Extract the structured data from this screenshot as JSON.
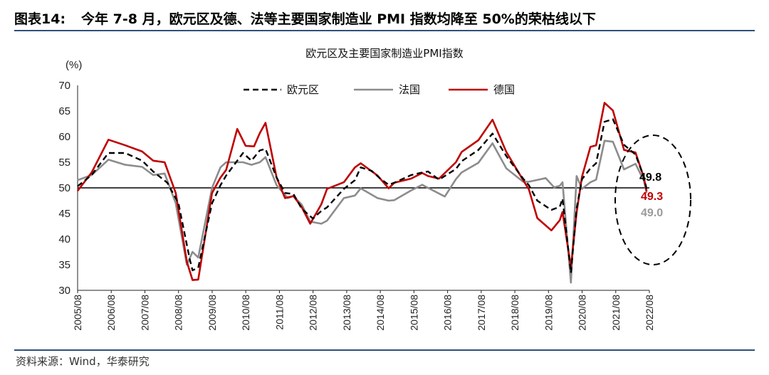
{
  "header": {
    "figure_number": "图表14:",
    "title": "今年 7-8 月，欧元区及德、法等主要国家制造业 PMI 指数均降至 50%的荣枯线以下"
  },
  "footer": {
    "source": "资料来源：Wind，华泰研究"
  },
  "colors": {
    "eurozone": "#000000",
    "france": "#8c8c8c",
    "germany": "#c00000",
    "rule": "#2e4f7a"
  },
  "chart_data": {
    "type": "line",
    "title": "欧元区及主要国家制造业PMI指数",
    "ylabel": "(%)",
    "xlabel": "",
    "ylim": [
      30,
      70
    ],
    "yticks": [
      30,
      35,
      40,
      45,
      50,
      55,
      60,
      65,
      70
    ],
    "reference_line": 50,
    "x_range": [
      2005.583,
      2022.583
    ],
    "x_tick_labels": [
      "2005/08",
      "2006/08",
      "2007/08",
      "2008/08",
      "2009/08",
      "2010/08",
      "2011/08",
      "2012/08",
      "2013/08",
      "2014/08",
      "2015/08",
      "2016/08",
      "2017/08",
      "2018/08",
      "2019/08",
      "2020/08",
      "2021/08",
      "2022/08"
    ],
    "legend_position": "top",
    "series": [
      {
        "name": "欧元区",
        "key": "eurozone",
        "style": "dashed",
        "points": [
          [
            2005.58,
            50.3
          ],
          [
            2006.0,
            52.5
          ],
          [
            2006.5,
            56.8
          ],
          [
            2007.0,
            56.8
          ],
          [
            2007.5,
            55.3
          ],
          [
            2007.83,
            53.2
          ],
          [
            2008.25,
            51.0
          ],
          [
            2008.58,
            47.0
          ],
          [
            2008.92,
            36.0
          ],
          [
            2009.0,
            33.9
          ],
          [
            2009.17,
            34.4
          ],
          [
            2009.58,
            47.0
          ],
          [
            2009.83,
            50.5
          ],
          [
            2010.0,
            52.4
          ],
          [
            2010.5,
            56.8
          ],
          [
            2010.75,
            55.3
          ],
          [
            2011.0,
            57.3
          ],
          [
            2011.17,
            57.6
          ],
          [
            2011.5,
            52.0
          ],
          [
            2011.75,
            49.0
          ],
          [
            2012.0,
            48.8
          ],
          [
            2012.25,
            45.9
          ],
          [
            2012.58,
            44.0
          ],
          [
            2012.83,
            45.5
          ],
          [
            2013.0,
            46.2
          ],
          [
            2013.5,
            49.8
          ],
          [
            2013.83,
            51.5
          ],
          [
            2014.0,
            54.0
          ],
          [
            2014.33,
            53.3
          ],
          [
            2014.58,
            51.8
          ],
          [
            2014.83,
            50.6
          ],
          [
            2015.0,
            51.0
          ],
          [
            2015.5,
            52.5
          ],
          [
            2015.83,
            53.0
          ],
          [
            2016.0,
            53.2
          ],
          [
            2016.33,
            51.6
          ],
          [
            2016.83,
            53.7
          ],
          [
            2017.0,
            55.2
          ],
          [
            2017.5,
            57.4
          ],
          [
            2017.92,
            60.6
          ],
          [
            2018.33,
            56.2
          ],
          [
            2018.83,
            51.8
          ],
          [
            2019.0,
            50.5
          ],
          [
            2019.25,
            47.5
          ],
          [
            2019.67,
            45.7
          ],
          [
            2019.92,
            46.3
          ],
          [
            2020.0,
            47.9
          ],
          [
            2020.25,
            33.4
          ],
          [
            2020.42,
            46.0
          ],
          [
            2020.58,
            51.7
          ],
          [
            2020.83,
            53.8
          ],
          [
            2021.0,
            54.8
          ],
          [
            2021.25,
            62.9
          ],
          [
            2021.5,
            63.4
          ],
          [
            2021.83,
            58.4
          ],
          [
            2022.17,
            56.5
          ],
          [
            2022.42,
            52.1
          ],
          [
            2022.5,
            49.8
          ]
        ]
      },
      {
        "name": "法国",
        "key": "france",
        "style": "solid",
        "points": [
          [
            2005.58,
            51.5
          ],
          [
            2006.0,
            52.5
          ],
          [
            2006.5,
            55.5
          ],
          [
            2007.0,
            54.5
          ],
          [
            2007.5,
            54.1
          ],
          [
            2007.83,
            52.5
          ],
          [
            2008.17,
            52.8
          ],
          [
            2008.5,
            47.0
          ],
          [
            2008.83,
            35.0
          ],
          [
            2009.0,
            37.5
          ],
          [
            2009.17,
            36.4
          ],
          [
            2009.58,
            50.0
          ],
          [
            2009.83,
            54.0
          ],
          [
            2010.0,
            55.0
          ],
          [
            2010.5,
            55.0
          ],
          [
            2010.75,
            54.5
          ],
          [
            2011.0,
            55.0
          ],
          [
            2011.17,
            56.0
          ],
          [
            2011.5,
            50.5
          ],
          [
            2011.83,
            48.0
          ],
          [
            2012.0,
            48.4
          ],
          [
            2012.25,
            46.7
          ],
          [
            2012.5,
            43.4
          ],
          [
            2012.83,
            43.0
          ],
          [
            2013.0,
            43.6
          ],
          [
            2013.5,
            48.0
          ],
          [
            2013.83,
            48.5
          ],
          [
            2014.0,
            49.9
          ],
          [
            2014.5,
            48.0
          ],
          [
            2014.83,
            47.5
          ],
          [
            2015.0,
            47.6
          ],
          [
            2015.5,
            49.5
          ],
          [
            2015.83,
            50.6
          ],
          [
            2016.0,
            50.0
          ],
          [
            2016.5,
            48.3
          ],
          [
            2016.83,
            51.7
          ],
          [
            2017.0,
            53.0
          ],
          [
            2017.5,
            54.9
          ],
          [
            2017.92,
            58.7
          ],
          [
            2018.33,
            53.8
          ],
          [
            2018.83,
            51.2
          ],
          [
            2019.0,
            51.2
          ],
          [
            2019.5,
            51.9
          ],
          [
            2019.75,
            50.1
          ],
          [
            2019.92,
            50.4
          ],
          [
            2020.0,
            51.1
          ],
          [
            2020.25,
            31.5
          ],
          [
            2020.42,
            52.3
          ],
          [
            2020.58,
            49.8
          ],
          [
            2020.83,
            51.1
          ],
          [
            2021.0,
            51.6
          ],
          [
            2021.25,
            59.2
          ],
          [
            2021.5,
            59.0
          ],
          [
            2021.83,
            53.6
          ],
          [
            2022.17,
            54.7
          ],
          [
            2022.42,
            51.4
          ],
          [
            2022.5,
            49.0
          ]
        ]
      },
      {
        "name": "德国",
        "key": "germany",
        "style": "solid",
        "points": [
          [
            2005.58,
            49.4
          ],
          [
            2006.0,
            53.0
          ],
          [
            2006.5,
            59.4
          ],
          [
            2007.0,
            58.3
          ],
          [
            2007.5,
            57.1
          ],
          [
            2007.83,
            55.3
          ],
          [
            2008.17,
            55.0
          ],
          [
            2008.5,
            49.0
          ],
          [
            2008.83,
            35.6
          ],
          [
            2009.0,
            32.0
          ],
          [
            2009.17,
            32.1
          ],
          [
            2009.58,
            49.0
          ],
          [
            2009.83,
            52.0
          ],
          [
            2010.0,
            53.5
          ],
          [
            2010.33,
            61.5
          ],
          [
            2010.58,
            58.2
          ],
          [
            2010.83,
            58.1
          ],
          [
            2011.0,
            60.7
          ],
          [
            2011.17,
            62.7
          ],
          [
            2011.5,
            52.0
          ],
          [
            2011.75,
            48.0
          ],
          [
            2012.0,
            48.4
          ],
          [
            2012.25,
            46.2
          ],
          [
            2012.5,
            43.0
          ],
          [
            2012.83,
            46.8
          ],
          [
            2013.0,
            49.8
          ],
          [
            2013.5,
            51.1
          ],
          [
            2013.83,
            54.0
          ],
          [
            2014.0,
            54.8
          ],
          [
            2014.5,
            52.4
          ],
          [
            2014.83,
            49.9
          ],
          [
            2015.0,
            51.0
          ],
          [
            2015.5,
            51.8
          ],
          [
            2015.83,
            52.9
          ],
          [
            2016.0,
            52.3
          ],
          [
            2016.33,
            51.8
          ],
          [
            2016.83,
            55.0
          ],
          [
            2017.0,
            57.0
          ],
          [
            2017.5,
            59.3
          ],
          [
            2017.92,
            63.3
          ],
          [
            2018.33,
            57.0
          ],
          [
            2018.83,
            51.5
          ],
          [
            2019.0,
            49.7
          ],
          [
            2019.25,
            44.1
          ],
          [
            2019.67,
            41.7
          ],
          [
            2019.92,
            43.7
          ],
          [
            2020.0,
            45.3
          ],
          [
            2020.25,
            34.5
          ],
          [
            2020.42,
            45.2
          ],
          [
            2020.58,
            52.2
          ],
          [
            2020.83,
            58.0
          ],
          [
            2021.0,
            58.3
          ],
          [
            2021.25,
            66.6
          ],
          [
            2021.5,
            65.1
          ],
          [
            2021.83,
            57.4
          ],
          [
            2022.17,
            56.9
          ],
          [
            2022.42,
            52.0
          ],
          [
            2022.5,
            49.3
          ]
        ]
      }
    ],
    "annotations": [
      {
        "series": "eurozone",
        "text": "49.8"
      },
      {
        "series": "germany",
        "text": "49.3"
      },
      {
        "series": "france",
        "text": "49.0"
      }
    ]
  }
}
